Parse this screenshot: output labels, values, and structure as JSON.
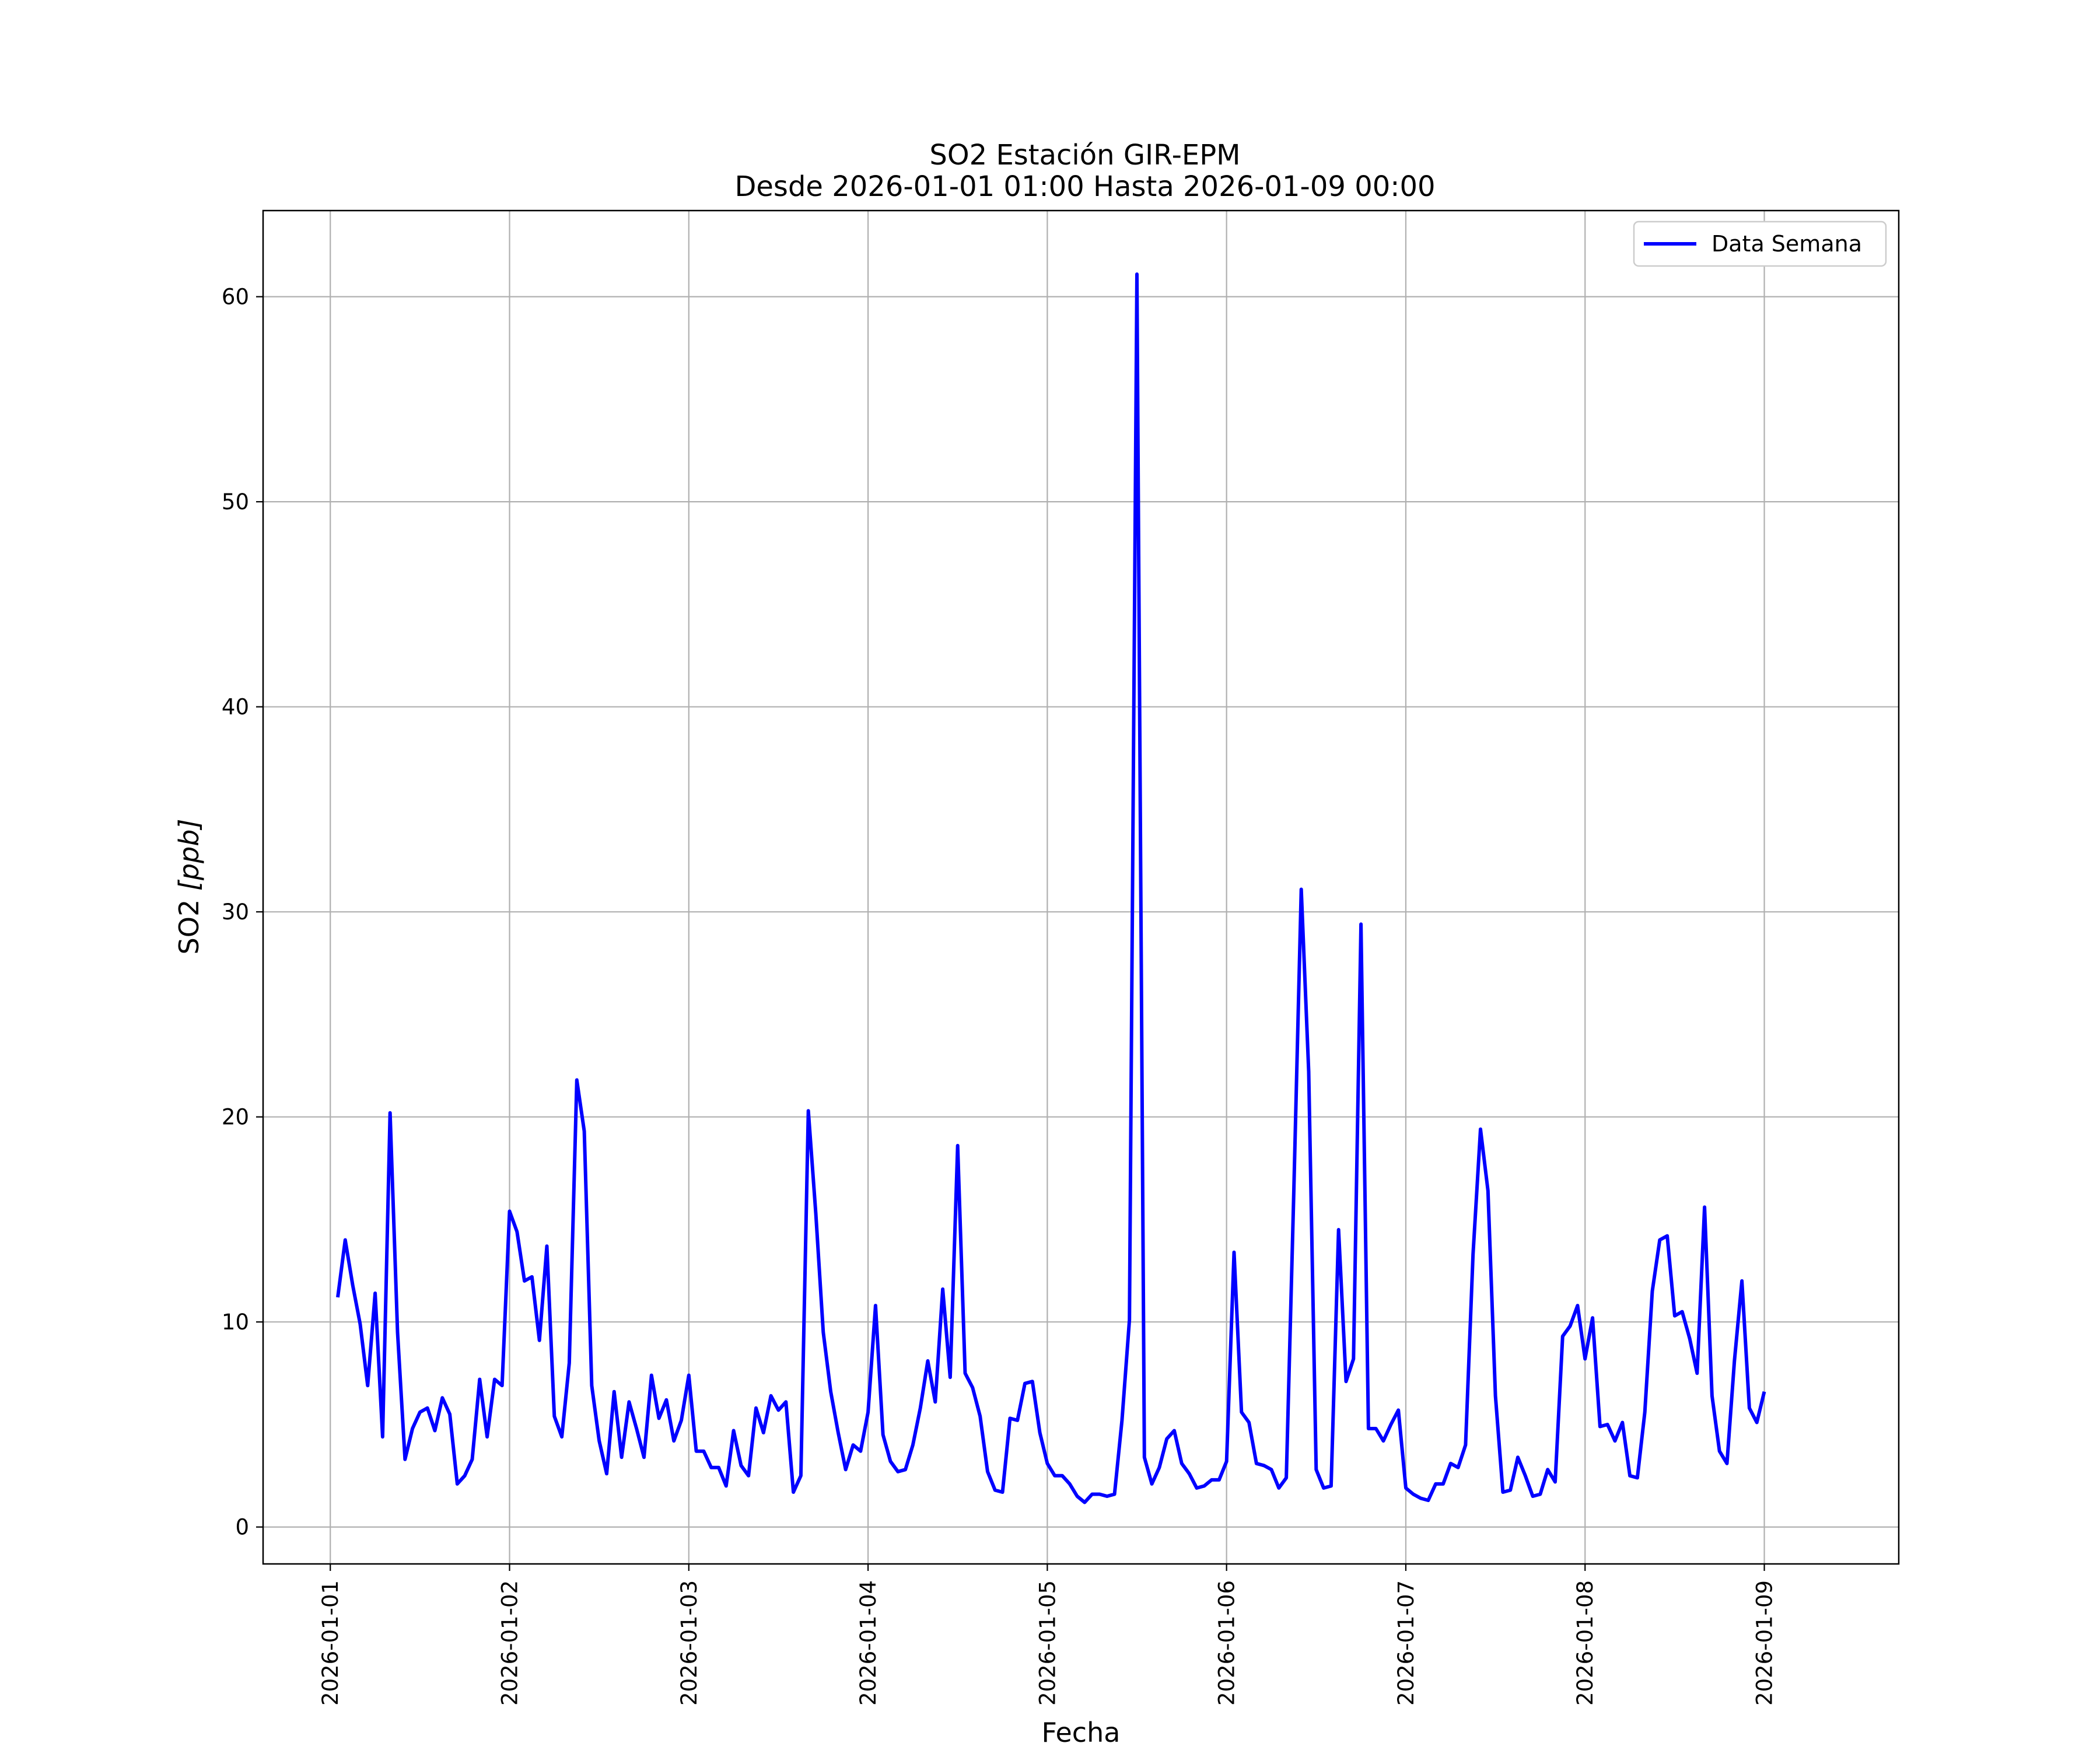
{
  "chart_data": {
    "type": "line",
    "title": "SO2 Estación GIR-EPM",
    "subtitle": "Desde 2026-01-01 01:00 Hasta 2026-01-09 00:00",
    "xlabel": "Fecha",
    "ylabel_main": "SO2",
    "ylabel_unit": "[ppb]",
    "ylim": [
      -1.8,
      64.2
    ],
    "xlim": [
      "2025-12-31 15:00",
      "2026-01-09 18:00"
    ],
    "x_ticks": [
      "2026-01-01",
      "2026-01-02",
      "2026-01-03",
      "2026-01-04",
      "2026-01-05",
      "2026-01-06",
      "2026-01-07",
      "2026-01-08",
      "2026-01-09"
    ],
    "y_ticks": [
      0,
      10,
      20,
      30,
      40,
      50,
      60
    ],
    "y_tick_labels": [
      "0",
      "10",
      "20",
      "30",
      "40",
      "50",
      "60"
    ],
    "grid": true,
    "legend_position": "top-right",
    "x_start": "2026-01-01 01:00",
    "x_step": "1 hour",
    "series": [
      {
        "name": "Data Semana",
        "color": "#0000ff",
        "values": [
          11.2,
          14.0,
          11.8,
          9.9,
          6.9,
          11.4,
          4.4,
          20.2,
          9.5,
          3.3,
          4.8,
          5.6,
          5.8,
          4.7,
          6.3,
          5.5,
          2.1,
          2.5,
          3.3,
          7.2,
          4.4,
          7.2,
          6.9,
          15.4,
          14.4,
          12.0,
          12.2,
          9.1,
          13.7,
          5.4,
          4.4,
          8.0,
          21.8,
          19.3,
          6.9,
          4.2,
          2.6,
          6.6,
          3.4,
          6.1,
          4.8,
          3.4,
          7.4,
          5.3,
          6.2,
          4.2,
          5.2,
          7.4,
          3.7,
          3.7,
          2.9,
          2.9,
          2.0,
          4.7,
          3.0,
          2.5,
          5.8,
          4.6,
          6.4,
          5.7,
          6.1,
          1.7,
          2.5,
          20.3,
          15.3,
          9.5,
          6.6,
          4.6,
          2.8,
          4.0,
          3.7,
          5.6,
          10.8,
          4.5,
          3.2,
          2.7,
          2.8,
          4.0,
          5.8,
          8.1,
          6.1,
          11.6,
          7.3,
          18.6,
          7.5,
          6.8,
          5.4,
          2.7,
          1.8,
          1.7,
          5.3,
          5.2,
          7.0,
          7.1,
          4.6,
          3.1,
          2.5,
          2.5,
          2.1,
          1.5,
          1.2,
          1.6,
          1.6,
          1.5,
          1.6,
          5.2,
          10.1,
          61.1,
          3.4,
          2.1,
          2.9,
          4.3,
          4.7,
          3.1,
          2.6,
          1.9,
          2.0,
          2.3,
          2.3,
          3.2,
          13.4,
          5.6,
          5.1,
          3.1,
          3.0,
          2.8,
          1.9,
          2.4,
          16.3,
          31.1,
          22.2,
          2.8,
          1.9,
          2.0,
          14.5,
          7.1,
          8.2,
          29.4,
          4.8,
          4.8,
          4.2,
          5.0,
          5.7,
          1.9,
          1.6,
          1.4,
          1.3,
          2.1,
          2.1,
          3.1,
          2.9,
          4.0,
          13.3,
          19.4,
          16.4,
          6.4,
          1.7,
          1.8,
          3.4,
          2.5,
          1.5,
          1.6,
          2.8,
          2.2,
          9.3,
          9.8,
          10.8,
          8.2,
          10.2,
          4.9,
          5.0,
          4.2,
          5.1,
          2.5,
          2.4,
          5.6,
          11.5,
          14.0,
          14.2,
          10.3,
          10.5,
          9.2,
          7.5,
          15.6,
          6.4,
          3.7,
          3.1,
          8.1,
          12.0,
          5.8,
          5.1,
          6.6
        ]
      }
    ]
  }
}
